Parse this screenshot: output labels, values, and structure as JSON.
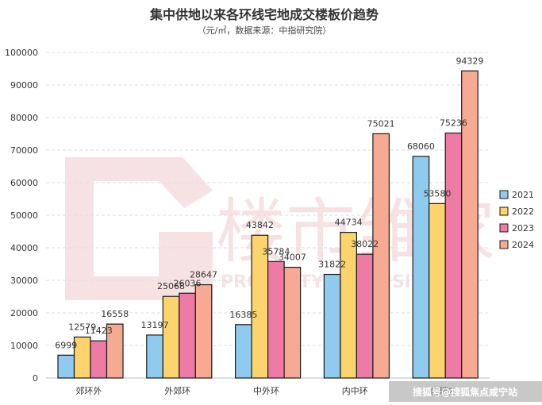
{
  "chart_data": {
    "type": "bar",
    "title": "集中供地以来各环线宅地成交楼板价趋势",
    "subtitle": "（元/㎡，数据来源：中指研究院）",
    "categories": [
      "郊环外",
      "外郊环",
      "中外环",
      "内中环",
      "内环内"
    ],
    "series": [
      {
        "name": "2021",
        "color": "#8fcbee",
        "values": [
          6999,
          13197,
          16385,
          31822,
          68060
        ]
      },
      {
        "name": "2022",
        "color": "#fcd46e",
        "values": [
          12579,
          25068,
          43842,
          44734,
          53580
        ]
      },
      {
        "name": "2023",
        "color": "#ee7ba6",
        "values": [
          11423,
          26036,
          35784,
          38022,
          75236
        ]
      },
      {
        "name": "2024",
        "color": "#f6aa92",
        "values": [
          16558,
          28647,
          34007,
          75021,
          94329
        ]
      }
    ],
    "ylim": [
      0,
      100000
    ],
    "yticks": [
      0,
      10000,
      20000,
      30000,
      40000,
      50000,
      60000,
      70000,
      80000,
      90000,
      100000
    ],
    "grid": true,
    "legend_position": "right"
  },
  "watermark": {
    "logo_text": "楼市雏家",
    "logo_sub": "PROPERTY EXCLUSIVE",
    "footer_text": "搜狐号@搜狐焦点咸宁站"
  }
}
